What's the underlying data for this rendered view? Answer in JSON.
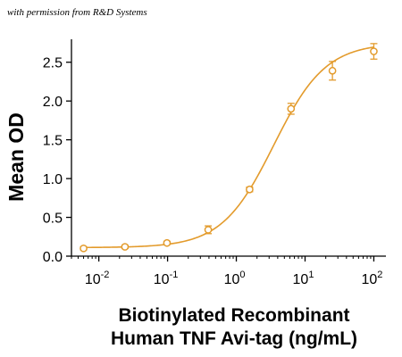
{
  "credit": "with permission from R&D Systems",
  "chart_data": {
    "type": "scatter",
    "series": [
      {
        "x": [
          0.006,
          0.024,
          0.098,
          0.39,
          1.56,
          6.25,
          25,
          100
        ],
        "y": [
          0.1,
          0.12,
          0.17,
          0.34,
          0.86,
          1.9,
          2.39,
          2.64
        ],
        "error": [
          0.02,
          0.02,
          0.02,
          0.05,
          0.03,
          0.07,
          0.12,
          0.1
        ]
      }
    ],
    "fit_curve": {
      "model": "4PL",
      "bottom": 0.11,
      "top": 2.75,
      "ec50": 3.5,
      "hill": 1.15
    },
    "xscale": "log",
    "xlim": [
      0.004,
      150
    ],
    "ylim": [
      0,
      2.75
    ],
    "yticks": [
      "0.0",
      "0.5",
      "1.0",
      "1.5",
      "2.0",
      "2.5"
    ],
    "ytick_values": [
      0,
      0.5,
      1.0,
      1.5,
      2.0,
      2.5
    ],
    "xticks": [
      {
        "value": 0.01,
        "base": "10",
        "exp": "-2"
      },
      {
        "value": 0.1,
        "base": "10",
        "exp": "-1"
      },
      {
        "value": 1,
        "base": "10",
        "exp": "0"
      },
      {
        "value": 10,
        "base": "10",
        "exp": "1"
      },
      {
        "value": 100,
        "base": "10",
        "exp": "2"
      }
    ],
    "ylabel": "Mean OD",
    "xlabel": [
      "Biotinylated Recombinant",
      "Human TNF Avi-tag (ng/mL)"
    ],
    "color": "#E39B2C",
    "grid": false
  }
}
